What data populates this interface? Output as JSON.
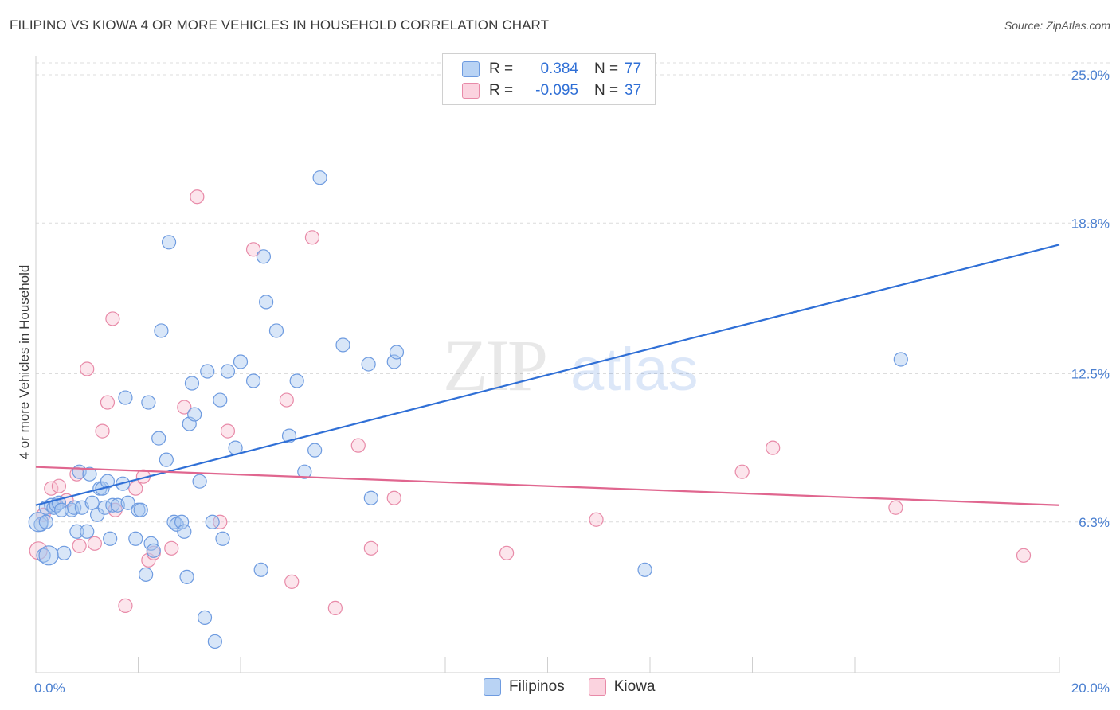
{
  "title": "FILIPINO VS KIOWA 4 OR MORE VEHICLES IN HOUSEHOLD CORRELATION CHART",
  "source": "Source: ZipAtlas.com",
  "legend": {
    "rows": [
      {
        "r_label": "R =",
        "r_value": "0.384",
        "n_label": "N =",
        "n_value": "77",
        "color": "#a9c8f0",
        "border": "#6e9be0"
      },
      {
        "r_label": "R =",
        "r_value": "-0.095",
        "n_label": "N =",
        "n_value": "37",
        "color": "#f8c6d4",
        "border": "#e88aa8"
      }
    ]
  },
  "bottom_legend": {
    "filipinos": "Filipinos",
    "kiowa": "Kiowa"
  },
  "chart_data": {
    "type": "scatter",
    "title": "FILIPINO VS KIOWA 4 OR MORE VEHICLES IN HOUSEHOLD CORRELATION CHART",
    "xlabel": "",
    "ylabel": "4 or more Vehicles in Household",
    "xlim": [
      0,
      20
    ],
    "ylim": [
      0,
      25.8
    ],
    "x_tick_labels": [
      "0.0%",
      "20.0%"
    ],
    "y_ticks": [
      6.3,
      12.5,
      18.8,
      25.0
    ],
    "y_tick_labels": [
      "6.3%",
      "12.5%",
      "18.8%",
      "25.0%"
    ],
    "grid": true,
    "watermark": "ZIPatlas",
    "series": [
      {
        "name": "Filipinos",
        "color": "#6e9be0",
        "fill": "rgba(169,200,240,0.45)",
        "trend": {
          "x": [
            0,
            20
          ],
          "y": [
            7.0,
            17.9
          ]
        },
        "points": [
          [
            0.1,
            6.2
          ],
          [
            0.15,
            4.9
          ],
          [
            0.2,
            6.9
          ],
          [
            0.3,
            7.0
          ],
          [
            0.35,
            6.9
          ],
          [
            0.4,
            7.0
          ],
          [
            0.45,
            7.1
          ],
          [
            0.5,
            6.8
          ],
          [
            0.55,
            5.0
          ],
          [
            0.7,
            6.8
          ],
          [
            0.75,
            6.9
          ],
          [
            0.8,
            5.9
          ],
          [
            0.85,
            8.4
          ],
          [
            0.9,
            6.9
          ],
          [
            1.0,
            5.9
          ],
          [
            1.05,
            8.3
          ],
          [
            1.1,
            7.1
          ],
          [
            1.2,
            6.6
          ],
          [
            1.25,
            7.7
          ],
          [
            1.3,
            7.7
          ],
          [
            1.35,
            6.9
          ],
          [
            1.4,
            8.0
          ],
          [
            1.45,
            5.6
          ],
          [
            1.5,
            7.0
          ],
          [
            1.6,
            7.0
          ],
          [
            1.7,
            7.9
          ],
          [
            1.75,
            11.5
          ],
          [
            1.8,
            7.1
          ],
          [
            1.95,
            5.6
          ],
          [
            2.0,
            6.8
          ],
          [
            2.05,
            6.8
          ],
          [
            2.15,
            4.1
          ],
          [
            2.2,
            11.3
          ],
          [
            2.25,
            5.4
          ],
          [
            2.3,
            5.1
          ],
          [
            2.4,
            9.8
          ],
          [
            2.45,
            14.3
          ],
          [
            2.55,
            8.9
          ],
          [
            2.6,
            18.0
          ],
          [
            2.7,
            6.3
          ],
          [
            2.75,
            6.2
          ],
          [
            2.85,
            6.3
          ],
          [
            2.9,
            5.9
          ],
          [
            2.95,
            4.0
          ],
          [
            3.0,
            10.4
          ],
          [
            3.05,
            12.1
          ],
          [
            3.1,
            10.8
          ],
          [
            3.2,
            8.0
          ],
          [
            3.3,
            2.3
          ],
          [
            3.35,
            12.6
          ],
          [
            3.45,
            6.3
          ],
          [
            3.5,
            1.3
          ],
          [
            3.6,
            11.4
          ],
          [
            3.65,
            5.6
          ],
          [
            3.75,
            12.6
          ],
          [
            3.9,
            9.4
          ],
          [
            4.0,
            13.0
          ],
          [
            4.25,
            12.2
          ],
          [
            4.4,
            4.3
          ],
          [
            4.5,
            15.5
          ],
          [
            4.45,
            17.4
          ],
          [
            4.7,
            14.3
          ],
          [
            4.95,
            9.9
          ],
          [
            5.1,
            12.2
          ],
          [
            5.25,
            8.4
          ],
          [
            5.45,
            9.3
          ],
          [
            5.55,
            20.7
          ],
          [
            6.0,
            13.7
          ],
          [
            6.55,
            7.3
          ],
          [
            6.5,
            12.9
          ],
          [
            7.0,
            13.0
          ],
          [
            7.05,
            13.4
          ],
          [
            11.9,
            4.3
          ],
          [
            16.9,
            13.1
          ],
          [
            0.05,
            6.3
          ],
          [
            0.2,
            6.3
          ],
          [
            0.25,
            4.9
          ]
        ]
      },
      {
        "name": "Kiowa",
        "color": "#e88aa8",
        "fill": "rgba(248,198,212,0.45)",
        "trend": {
          "x": [
            0,
            20
          ],
          "y": [
            8.6,
            7.0
          ]
        },
        "points": [
          [
            0.05,
            5.1
          ],
          [
            0.15,
            6.6
          ],
          [
            0.3,
            7.7
          ],
          [
            0.45,
            7.8
          ],
          [
            0.6,
            7.2
          ],
          [
            0.8,
            8.3
          ],
          [
            0.85,
            5.3
          ],
          [
            1.0,
            12.7
          ],
          [
            1.15,
            5.4
          ],
          [
            1.3,
            10.1
          ],
          [
            1.4,
            11.3
          ],
          [
            1.5,
            14.8
          ],
          [
            1.55,
            6.8
          ],
          [
            1.75,
            2.8
          ],
          [
            1.95,
            7.7
          ],
          [
            2.1,
            8.2
          ],
          [
            2.2,
            4.7
          ],
          [
            2.3,
            5.0
          ],
          [
            2.65,
            5.2
          ],
          [
            2.9,
            11.1
          ],
          [
            3.15,
            19.9
          ],
          [
            3.6,
            6.3
          ],
          [
            3.75,
            10.1
          ],
          [
            4.25,
            17.7
          ],
          [
            4.9,
            11.4
          ],
          [
            5.0,
            3.8
          ],
          [
            5.4,
            18.2
          ],
          [
            5.85,
            2.7
          ],
          [
            6.3,
            9.5
          ],
          [
            6.55,
            5.2
          ],
          [
            7.0,
            7.3
          ],
          [
            9.2,
            5.0
          ],
          [
            10.95,
            6.4
          ],
          [
            13.8,
            8.4
          ],
          [
            14.4,
            9.4
          ],
          [
            16.8,
            6.9
          ],
          [
            19.3,
            4.9
          ]
        ]
      }
    ]
  }
}
